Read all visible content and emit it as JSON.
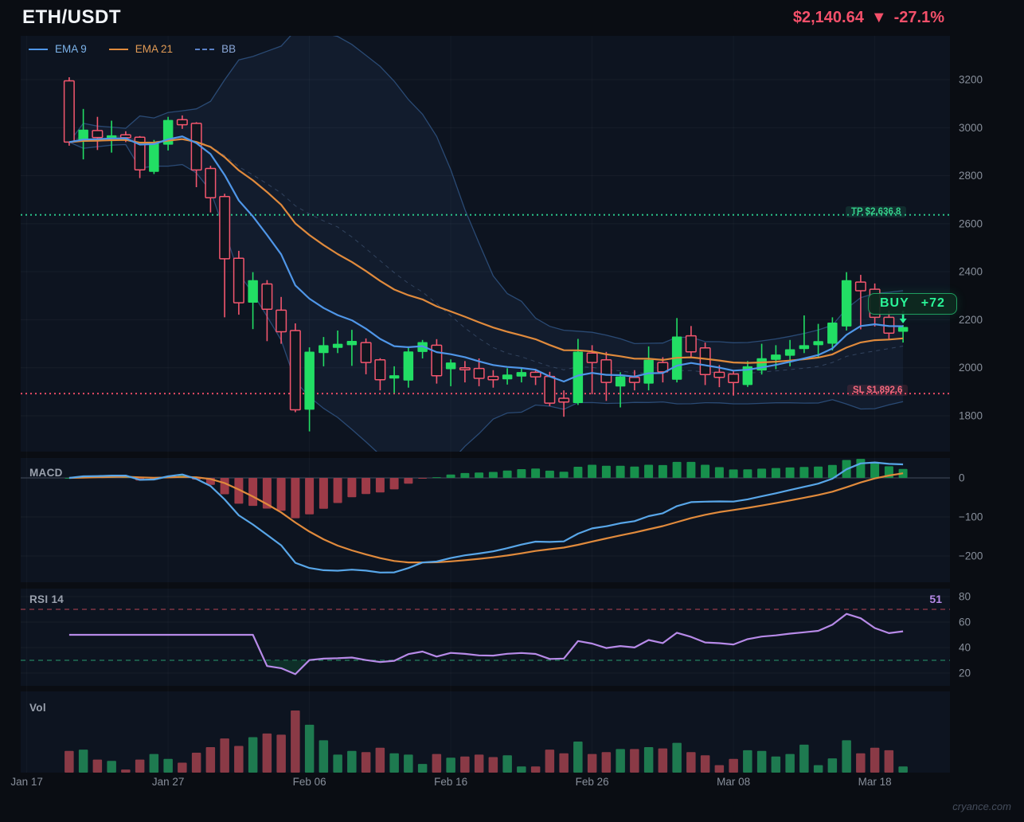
{
  "header": {
    "symbol": "ETH/USDT",
    "price": "$2,140.64",
    "direction": "▼",
    "change": "-27.1%"
  },
  "legend": [
    {
      "label": "EMA 9",
      "color": "#4f96e8",
      "text_color": "#7cb3ea",
      "style": "solid"
    },
    {
      "label": "EMA 21",
      "color": "#e08a3c",
      "text_color": "#e09a55",
      "style": "solid"
    },
    {
      "label": "BB",
      "color": "#5b82c8",
      "text_color": "#8aa7d8",
      "style": "dashed"
    }
  ],
  "panels": {
    "macd_label": "MACD",
    "rsi_label": "RSI 14",
    "vol_label": "Vol",
    "rsi_value": "51"
  },
  "annotations": {
    "tp_label": "TP $2,636.8",
    "sl_label": "SL $1,892.6",
    "buy_label": "BUY",
    "buy_value": "+72"
  },
  "watermark": "cryance.com",
  "chart_data": {
    "type": "candlestick",
    "title": "ETH/USDT daily candles with EMA 9, EMA 21, Bollinger Bands, MACD(12,26,9), RSI(14), Volume",
    "x_ticks": [
      {
        "label": "Jan 17",
        "index": -3
      },
      {
        "label": "Jan 27",
        "index": 7
      },
      {
        "label": "Feb 06",
        "index": 17
      },
      {
        "label": "Feb 16",
        "index": 27
      },
      {
        "label": "Feb 26",
        "index": 37
      },
      {
        "label": "Mar 08",
        "index": 47
      },
      {
        "label": "Mar 18",
        "index": 57
      }
    ],
    "y_axis": {
      "main_ticks": [
        3200,
        3000,
        2800,
        2600,
        2400,
        2200,
        2000,
        1800
      ],
      "main_range": [
        1660,
        3382
      ],
      "macd_ticks": [
        0,
        -100,
        -200
      ],
      "rsi_ticks": [
        80,
        60,
        40,
        20
      ]
    },
    "candles": [
      [
        3195,
        3210,
        2925,
        2940
      ],
      [
        2942,
        3078,
        2868,
        2992
      ],
      [
        2988,
        3045,
        2907,
        2959
      ],
      [
        2957,
        3029,
        2896,
        2968
      ],
      [
        2970,
        2985,
        2940,
        2958
      ],
      [
        2960,
        2965,
        2790,
        2824
      ],
      [
        2816,
        2949,
        2807,
        2940
      ],
      [
        2929,
        3045,
        2905,
        3032
      ],
      [
        3033,
        3051,
        2995,
        3012
      ],
      [
        3018,
        3023,
        2752,
        2824
      ],
      [
        2830,
        2841,
        2647,
        2708
      ],
      [
        2713,
        2725,
        2210,
        2454
      ],
      [
        2456,
        2487,
        2221,
        2271
      ],
      [
        2271,
        2398,
        2161,
        2365
      ],
      [
        2349,
        2365,
        2111,
        2244
      ],
      [
        2240,
        2295,
        2100,
        2150
      ],
      [
        2155,
        2185,
        1815,
        1825
      ],
      [
        1825,
        2085,
        1735,
        2067
      ],
      [
        2061,
        2128,
        2006,
        2094
      ],
      [
        2083,
        2155,
        2061,
        2100
      ],
      [
        2094,
        2158,
        2008,
        2112
      ],
      [
        2105,
        2122,
        1973,
        2022
      ],
      [
        2033,
        2040,
        1906,
        1950
      ],
      [
        1955,
        2006,
        1895,
        1969
      ],
      [
        1947,
        2083,
        1917,
        2068
      ],
      [
        2066,
        2116,
        2039,
        2107
      ],
      [
        2094,
        2119,
        1934,
        1967
      ],
      [
        1994,
        2035,
        1923,
        2022
      ],
      [
        2000,
        2028,
        1939,
        1995
      ],
      [
        1997,
        2039,
        1923,
        1956
      ],
      [
        1964,
        1990,
        1917,
        1950
      ],
      [
        1952,
        1998,
        1930,
        1972
      ],
      [
        1963,
        1996,
        1939,
        1982
      ],
      [
        1981,
        1995,
        1928,
        1962
      ],
      [
        1964,
        1983,
        1840,
        1853
      ],
      [
        1873,
        1906,
        1796,
        1857
      ],
      [
        1853,
        2120,
        1845,
        2067
      ],
      [
        2061,
        2094,
        1890,
        2022
      ],
      [
        2033,
        2066,
        1862,
        1939
      ],
      [
        1922,
        1981,
        1835,
        1964
      ],
      [
        1960,
        1990,
        1906,
        1939
      ],
      [
        1934,
        2089,
        1906,
        2033
      ],
      [
        2022,
        2044,
        1939,
        1983
      ],
      [
        1950,
        2207,
        1939,
        2130
      ],
      [
        2133,
        2174,
        2044,
        2066
      ],
      [
        2083,
        2105,
        1928,
        1972
      ],
      [
        1981,
        2011,
        1919,
        1960
      ],
      [
        1974,
        1990,
        1884,
        1939
      ],
      [
        1928,
        2028,
        1920,
        2006
      ],
      [
        1989,
        2100,
        1972,
        2040
      ],
      [
        2033,
        2094,
        1994,
        2055
      ],
      [
        2050,
        2116,
        2006,
        2077
      ],
      [
        2078,
        2218,
        2061,
        2094
      ],
      [
        2094,
        2183,
        2039,
        2111
      ],
      [
        2100,
        2210,
        2072,
        2188
      ],
      [
        2172,
        2398,
        2155,
        2365
      ],
      [
        2357,
        2387,
        2160,
        2321
      ],
      [
        2327,
        2351,
        2172,
        2210
      ],
      [
        2210,
        2238,
        2116,
        2144
      ],
      [
        2150,
        2178,
        2105,
        2170
      ]
    ],
    "volume_rel": [
      0.35,
      0.37,
      0.21,
      0.19,
      0.05,
      0.21,
      0.3,
      0.22,
      0.16,
      0.32,
      0.41,
      0.55,
      0.43,
      0.57,
      0.63,
      0.61,
      1.0,
      0.77,
      0.52,
      0.29,
      0.35,
      0.33,
      0.4,
      0.31,
      0.29,
      0.14,
      0.3,
      0.24,
      0.26,
      0.29,
      0.25,
      0.28,
      0.1,
      0.1,
      0.37,
      0.31,
      0.5,
      0.3,
      0.33,
      0.38,
      0.38,
      0.41,
      0.39,
      0.48,
      0.33,
      0.28,
      0.12,
      0.22,
      0.36,
      0.35,
      0.26,
      0.3,
      0.45,
      0.12,
      0.23,
      0.52,
      0.31,
      0.4,
      0.36,
      0.1
    ],
    "levels": {
      "tp": 2636.8,
      "sl": 1892.6,
      "rsi_overbought": 70,
      "rsi_oversold": 30
    },
    "signal": {
      "type": "BUY",
      "score": 72,
      "candle_index": 59,
      "last_rsi": 51
    },
    "indicators": {
      "ema_fast": 9,
      "ema_slow": 21,
      "bb_period": 20,
      "bb_mult": 2,
      "macd": [
        12,
        26,
        9
      ],
      "rsi_period": 14
    },
    "legend_position": "top-left",
    "grid": true
  },
  "colors": {
    "background": "#0a0d13",
    "panel_bg": "#0d1420",
    "candle_up": "#22de64",
    "candle_down": "#f4566e",
    "candle_down_fill": "#10151f",
    "ema9": "#4f96e8",
    "ema21": "#e08a3c",
    "bb_band": "#2a4a74",
    "bb_mid": "#4a6285",
    "bb_fill": "rgba(86,140,220,0.07)",
    "macd_line": "#58a6e8",
    "macd_signal": "#e08a3c",
    "hist_up": "#17904c",
    "hist_down": "#9e3b48",
    "rsi_line": "#b78ae8",
    "rsi_ob": "#b84655",
    "rsi_os": "#2a9d72",
    "rsi_fill": "rgba(16,70,48,0.55)",
    "vol_up": "#1e7a50",
    "vol_down": "#8a3a46",
    "tp": "#2bc48a",
    "sl": "#e84b64",
    "buy": "#2af598",
    "axis_text": "#878e9a",
    "grid_line": "rgba(255,255,255,0.045)",
    "zero_line": "#434b5c",
    "price_down": "#f4506a"
  }
}
